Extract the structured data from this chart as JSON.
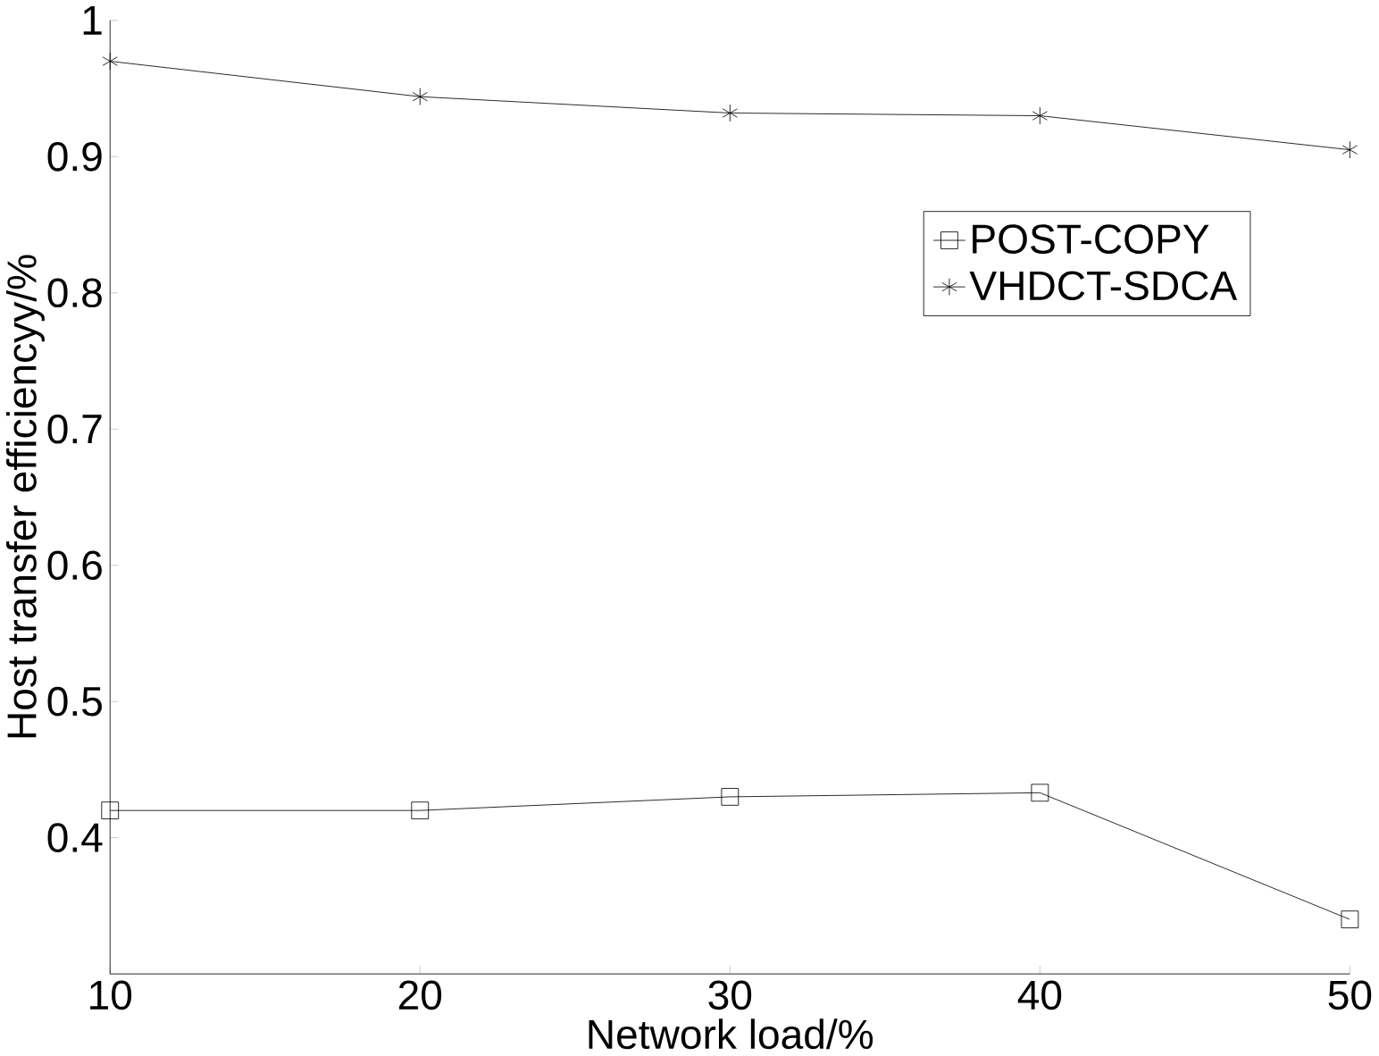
{
  "chart_data": {
    "type": "line",
    "xlabel": "Network load/%",
    "ylabel": "Host transfer efficiencyy/%",
    "x": [
      10,
      20,
      30,
      40,
      50
    ],
    "series": [
      {
        "name": "POST-COPY",
        "color": "#000000",
        "marker": "square",
        "values": [
          0.42,
          0.42,
          0.43,
          0.433,
          0.34
        ]
      },
      {
        "name": "VHDCT-SDCA",
        "color": "#000000",
        "marker": "cross",
        "values": [
          0.97,
          0.944,
          0.932,
          0.93,
          0.905
        ]
      }
    ],
    "xlim": [
      10,
      50
    ],
    "ylim": [
      0.3,
      1
    ],
    "xticks": [
      10,
      20,
      30,
      40,
      50
    ],
    "yticks": [
      0.4,
      0.5,
      0.6,
      0.7,
      0.8,
      0.9,
      1
    ],
    "legend": "top right",
    "grid": false,
    "line_style": "solid"
  }
}
